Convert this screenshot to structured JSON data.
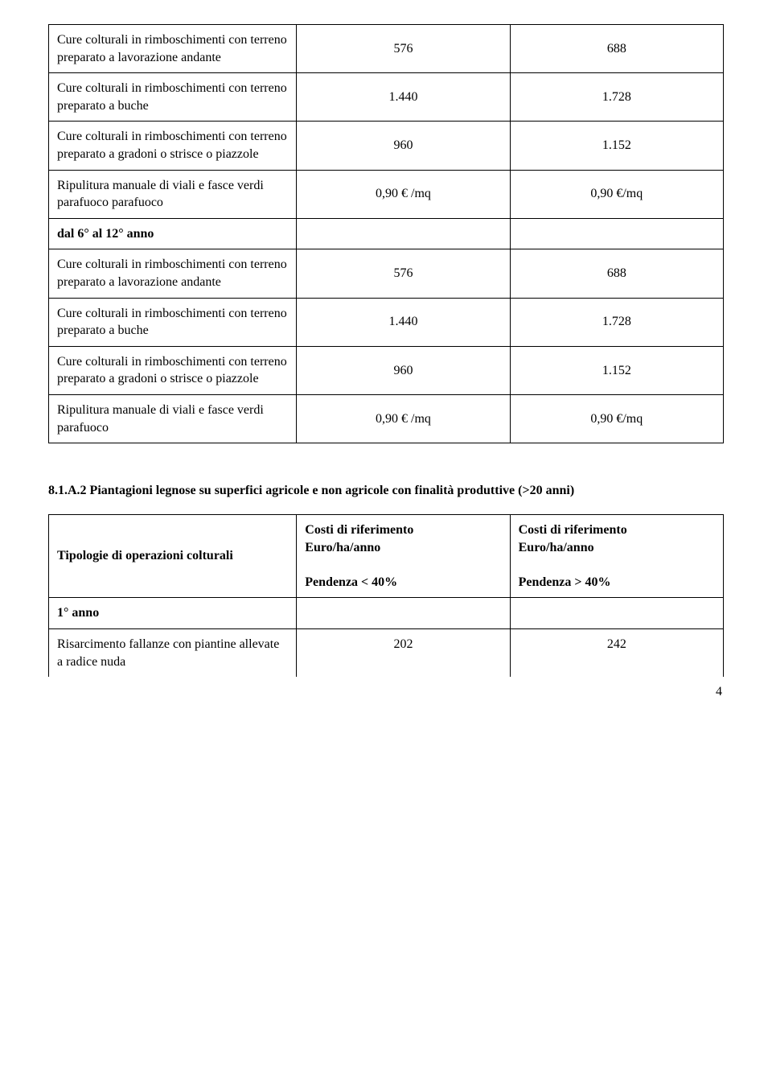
{
  "table1": {
    "rows": [
      {
        "label": "Cure colturali in rimboschimenti con terreno preparato a lavorazione andante",
        "v1": "576",
        "v2": "688",
        "bold": false
      },
      {
        "label": "Cure colturali in rimboschimenti con terreno preparato a buche",
        "v1": "1.440",
        "v2": "1.728",
        "bold": false
      },
      {
        "label": "Cure colturali in rimboschimenti con terreno preparato a gradoni o strisce o piazzole",
        "v1": "960",
        "v2": "1.152",
        "bold": false
      },
      {
        "label": "Ripulitura manuale di viali e fasce verdi parafuoco parafuoco",
        "v1": "0,90 € /mq",
        "v2": "0,90 €/mq",
        "bold": false
      },
      {
        "label": "dal 6° al 12° anno",
        "v1": "",
        "v2": "",
        "bold": true
      },
      {
        "label": "Cure colturali in rimboschimenti con terreno preparato a lavorazione andante",
        "v1": "576",
        "v2": "688",
        "bold": false
      },
      {
        "label": "Cure colturali in rimboschimenti con terreno preparato a buche",
        "v1": "1.440",
        "v2": "1.728",
        "bold": false
      },
      {
        "label": "Cure colturali in rimboschimenti con terreno preparato a gradoni o strisce o piazzole",
        "v1": "960",
        "v2": "1.152",
        "bold": false
      },
      {
        "label": "Ripulitura manuale di viali e fasce verdi parafuoco",
        "v1": "0,90 € /mq",
        "v2": "0,90 €/mq",
        "bold": false
      }
    ]
  },
  "section_heading": "8.1.A.2 Piantagioni legnose su superfici agricole e non agricole con finalità produttive  (>20 anni)",
  "table2": {
    "header": {
      "c1": "Tipologie di operazioni colturali",
      "c2_line1": "Costi di riferimento",
      "c2_line2": "Euro/ha/anno",
      "c2_line3": "Pendenza < 40%",
      "c3_line1": "Costi di riferimento",
      "c3_line2": "Euro/ha/anno",
      "c3_line3": "Pendenza > 40%"
    },
    "rows": [
      {
        "label": "1° anno",
        "v1": "",
        "v2": "",
        "bold": true
      },
      {
        "label": "Risarcimento fallanze con piantine allevate a radice nuda",
        "v1": "202",
        "v2": "242",
        "bold": false
      }
    ]
  },
  "page_number": "4"
}
